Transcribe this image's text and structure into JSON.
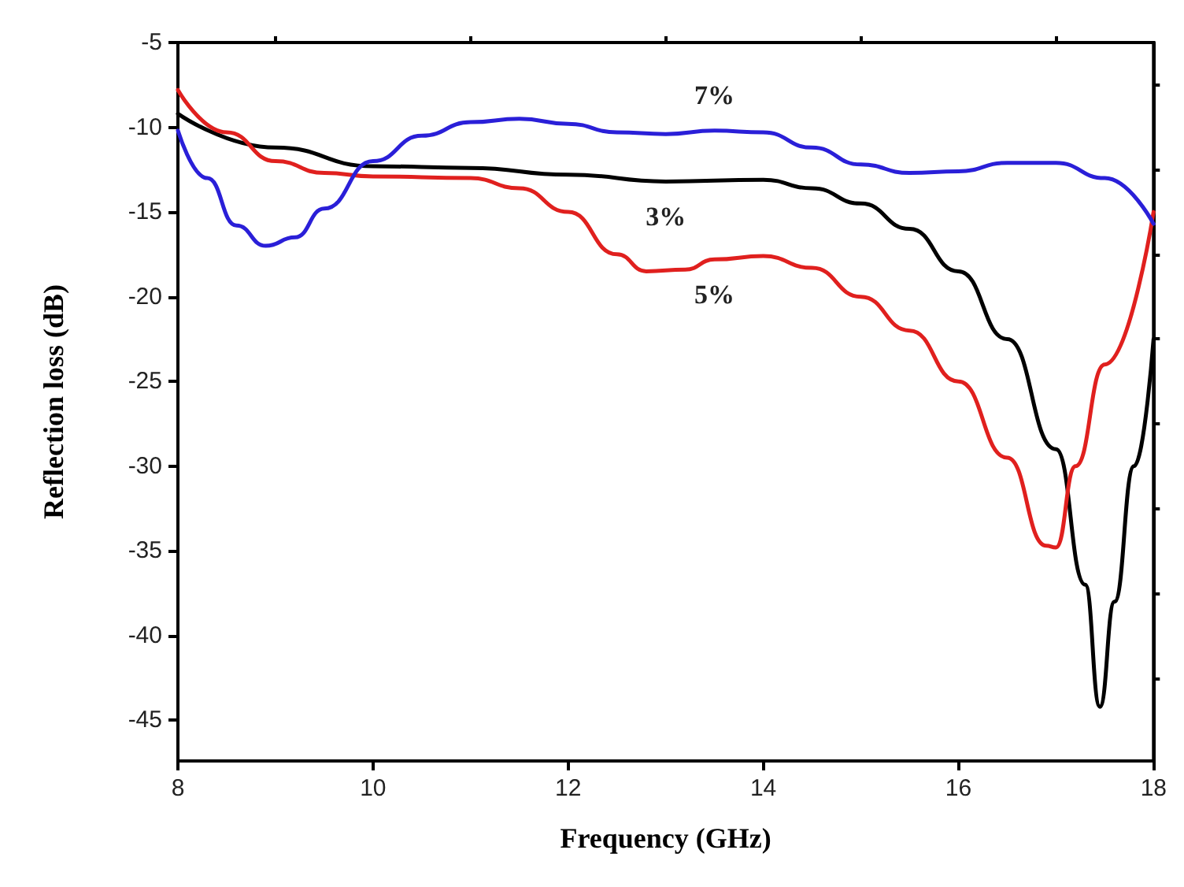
{
  "chart_data": {
    "type": "line",
    "xlabel": "Frequency (GHz)",
    "ylabel": "Reflection loss (dB)",
    "xlim": [
      8,
      18
    ],
    "xticks": [
      8,
      {
        "value": 9,
        "label": null
      },
      10,
      {
        "value": 11,
        "label": null
      },
      12,
      {
        "value": 13,
        "label": null
      },
      14,
      {
        "value": 15,
        "label": null
      },
      16,
      {
        "value": 17,
        "label": null
      },
      18
    ],
    "ylim": [
      -47.4,
      -5
    ],
    "yticks": [
      -45,
      {
        "value": -42.5,
        "label": null
      },
      -40,
      {
        "value": -37.5,
        "label": null
      },
      -35,
      {
        "value": -32.5,
        "label": null
      },
      -30,
      {
        "value": -27.5,
        "label": null
      },
      -25,
      {
        "value": -22.5,
        "label": null
      },
      -20,
      {
        "value": -17.5,
        "label": null
      },
      -15,
      {
        "value": -12.5,
        "label": null
      },
      -10,
      {
        "value": -7.5,
        "label": null
      },
      -5
    ],
    "grid": false,
    "legend": false,
    "marker": "none",
    "line_style": "solid",
    "series": [
      {
        "name": "3%",
        "color": "#000000",
        "x": [
          8,
          9,
          10,
          11,
          12,
          13,
          14,
          14.5,
          15,
          15.5,
          16,
          16.5,
          17,
          17.3,
          17.45,
          17.6,
          17.8,
          18
        ],
        "values": [
          -9.2,
          -11.2,
          -12.3,
          -12.4,
          -12.8,
          -13.2,
          -13.1,
          -13.6,
          -14.5,
          -16,
          -18.5,
          -22.5,
          -29,
          -37,
          -44.2,
          -38,
          -30,
          -22.5
        ]
      },
      {
        "name": "5%",
        "color": "#e0201e",
        "x": [
          8,
          8.5,
          9,
          9.5,
          10,
          11,
          11.5,
          12,
          12.5,
          12.8,
          13.2,
          13.5,
          14,
          14.5,
          15,
          15.5,
          16,
          16.5,
          16.9,
          17,
          17.2,
          17.5,
          18
        ],
        "values": [
          -7.8,
          -10.3,
          -12,
          -12.7,
          -12.9,
          -13,
          -13.6,
          -15,
          -17.5,
          -18.5,
          -18.4,
          -17.8,
          -17.6,
          -18.3,
          -20,
          -22,
          -25,
          -29.5,
          -34.7,
          -34.8,
          -30,
          -24,
          -15
        ]
      },
      {
        "name": "7%",
        "color": "#2a1fd8",
        "x": [
          8,
          8.3,
          8.6,
          8.9,
          9.2,
          9.5,
          10,
          10.5,
          11,
          11.5,
          12,
          12.5,
          13,
          13.5,
          14,
          14.5,
          15,
          15.5,
          16,
          16.5,
          17,
          17.5,
          18
        ],
        "values": [
          -10.2,
          -13,
          -15.8,
          -17,
          -16.5,
          -14.8,
          -12,
          -10.5,
          -9.7,
          -9.5,
          -9.8,
          -10.3,
          -10.4,
          -10.2,
          -10.3,
          -11.2,
          -12.2,
          -12.7,
          -12.6,
          -12.1,
          -12.1,
          -13,
          -15.7
        ]
      }
    ]
  }
}
